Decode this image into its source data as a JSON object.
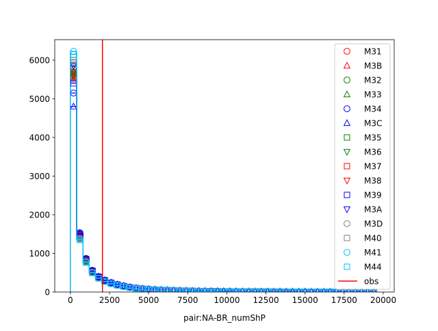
{
  "chart_data": {
    "type": "line",
    "title": "",
    "xlabel": "pair:NA-BR_numShP",
    "ylabel": "",
    "xlim": [
      -1000,
      20700
    ],
    "ylim": [
      0,
      6530
    ],
    "xticks": [
      0,
      2500,
      5000,
      7500,
      10000,
      12500,
      15000,
      17500,
      20000
    ],
    "yticks": [
      0,
      1000,
      2000,
      3000,
      4000,
      5000,
      6000
    ],
    "xtick_labels": [
      "0",
      "2500",
      "5000",
      "7500",
      "10000",
      "12500",
      "15000",
      "17500",
      "20000"
    ],
    "ytick_labels": [
      "0",
      "1000",
      "2000",
      "3000",
      "4000",
      "5000",
      "6000"
    ],
    "grid": false,
    "legend_position": "top-right",
    "bin_edges": [
      0,
      400,
      800,
      1200,
      1600,
      2000,
      2400,
      2800,
      3200,
      3600,
      4000,
      4400,
      4800,
      5200,
      5600,
      6000,
      6400,
      6800,
      7200,
      7600,
      8000,
      8400,
      8800,
      9200,
      9600,
      10000,
      10400,
      10800,
      11200,
      11600,
      12000,
      12400,
      12800,
      13200,
      13600,
      14000,
      14400,
      14800,
      15200,
      15600,
      16000,
      16400,
      16800,
      17200,
      17600,
      18000,
      18400,
      18800,
      19200,
      19600
    ],
    "base_values": [
      5700,
      1450,
      820,
      530,
      380,
      290,
      230,
      185,
      150,
      120,
      98,
      82,
      70,
      60,
      52,
      46,
      40,
      36,
      32,
      29,
      26,
      24,
      22,
      20,
      18,
      17,
      16,
      15,
      14,
      13,
      12,
      11,
      10,
      10,
      9,
      9,
      8,
      8,
      7,
      7,
      7,
      6,
      6,
      6,
      5,
      5,
      5,
      5,
      4
    ],
    "series": [
      {
        "name": "M31",
        "color": "#ff0000",
        "marker": "circle",
        "first": 5600,
        "scale": 1.03
      },
      {
        "name": "M3B",
        "color": "#ff0000",
        "marker": "triangle-up",
        "first": 5500,
        "scale": 1.04
      },
      {
        "name": "M32",
        "color": "#008000",
        "marker": "circle",
        "first": 5750,
        "scale": 0.99
      },
      {
        "name": "M33",
        "color": "#008000",
        "marker": "triangle-up",
        "first": 5700,
        "scale": 1.0
      },
      {
        "name": "M34",
        "color": "#0000ff",
        "marker": "circle",
        "first": 5150,
        "scale": 1.06
      },
      {
        "name": "M3C",
        "color": "#0000ff",
        "marker": "triangle-up",
        "first": 4800,
        "scale": 1.05
      },
      {
        "name": "M35",
        "color": "#008000",
        "marker": "square",
        "first": 5650,
        "scale": 0.97
      },
      {
        "name": "M36",
        "color": "#008000",
        "marker": "triangle-down",
        "first": 5600,
        "scale": 0.98
      },
      {
        "name": "M37",
        "color": "#ff0000",
        "marker": "square",
        "first": 5550,
        "scale": 1.02
      },
      {
        "name": "M38",
        "color": "#ff0000",
        "marker": "triangle-down",
        "first": 5700,
        "scale": 1.01
      },
      {
        "name": "M39",
        "color": "#0000ff",
        "marker": "square",
        "first": 5400,
        "scale": 1.04
      },
      {
        "name": "M3A",
        "color": "#0000ff",
        "marker": "triangle-down",
        "first": 5850,
        "scale": 1.03
      },
      {
        "name": "M3D",
        "color": "#808080",
        "marker": "circle",
        "first": 5950,
        "scale": 0.96
      },
      {
        "name": "M40",
        "color": "#808080",
        "marker": "square",
        "first": 6000,
        "scale": 0.95
      },
      {
        "name": "M41",
        "color": "#00bfff",
        "marker": "circle",
        "first": 6230,
        "scale": 0.94
      },
      {
        "name": "M44",
        "color": "#00bfff",
        "marker": "square",
        "first": 6150,
        "scale": 0.93
      }
    ],
    "obs": {
      "name": "obs",
      "color": "#ff0000",
      "x": 2050
    }
  }
}
